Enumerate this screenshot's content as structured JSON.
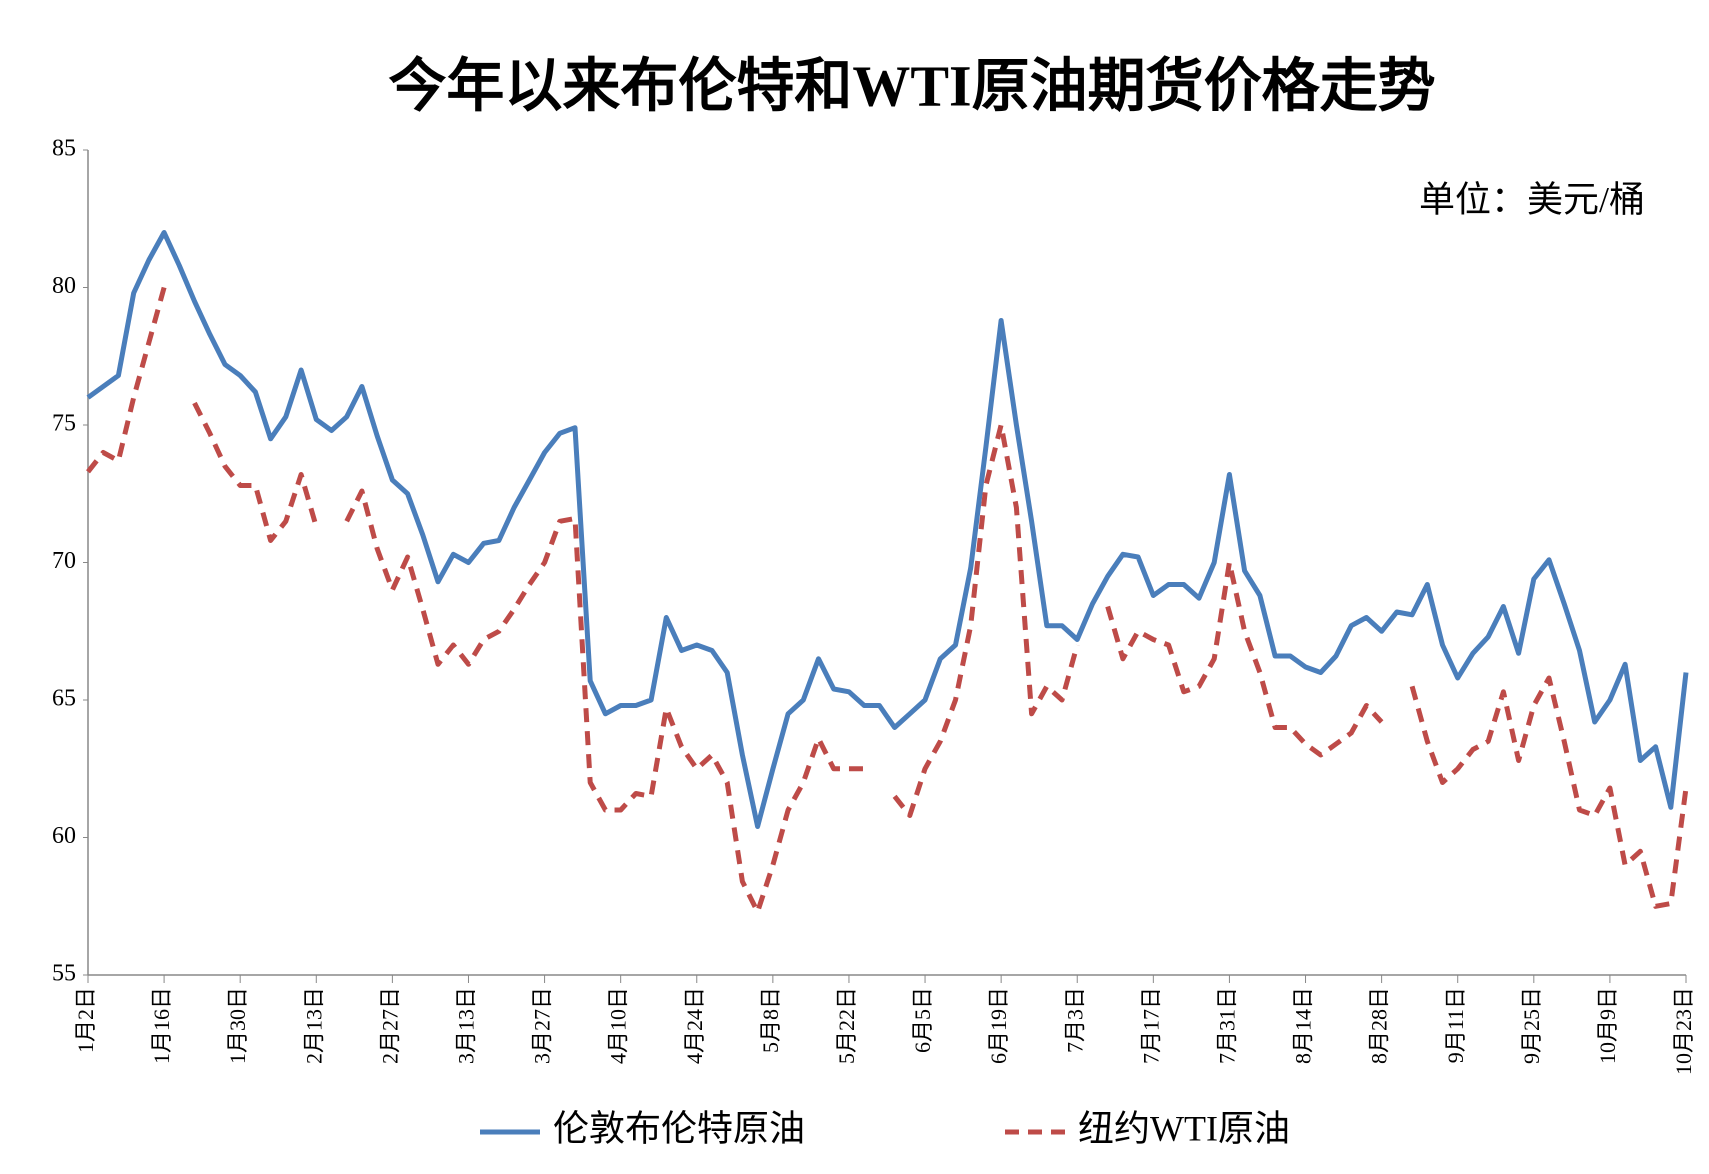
{
  "chart_data": {
    "type": "line",
    "title": "今年以来布伦特和WTI原油期货价格走势",
    "unit_label": "单位：美元/桶",
    "categories": [
      "1月2日",
      null,
      null,
      null,
      null,
      "1月16日",
      null,
      null,
      null,
      null,
      "1月30日",
      null,
      null,
      null,
      null,
      "2月13日",
      null,
      null,
      null,
      null,
      "2月27日",
      null,
      null,
      null,
      null,
      "3月13日",
      null,
      null,
      null,
      null,
      "3月27日",
      null,
      null,
      null,
      null,
      "4月10日",
      null,
      null,
      null,
      null,
      "4月24日",
      null,
      null,
      null,
      null,
      "5月8日",
      null,
      null,
      null,
      null,
      "5月22日",
      null,
      null,
      null,
      null,
      "6月5日",
      null,
      null,
      null,
      null,
      "6月19日",
      null,
      null,
      null,
      null,
      "7月3日",
      null,
      null,
      null,
      null,
      "7月17日",
      null,
      null,
      null,
      null,
      "7月31日",
      null,
      null,
      null,
      null,
      "8月14日",
      null,
      null,
      null,
      null,
      "8月28日",
      null,
      null,
      null,
      null,
      "9月11日",
      null,
      null,
      null,
      null,
      "9月25日",
      null,
      null,
      null,
      null,
      "10月9日",
      null,
      null,
      null,
      null,
      "10月23日"
    ],
    "series": [
      {
        "name": "伦敦布伦特原油",
        "color": "#4a7ebb",
        "dashed": false,
        "values": [
          76.0,
          76.4,
          76.8,
          79.8,
          81.0,
          82.0,
          80.8,
          79.5,
          78.3,
          77.2,
          76.8,
          76.2,
          74.5,
          75.3,
          77.0,
          75.2,
          74.8,
          75.3,
          76.4,
          74.6,
          73.0,
          72.5,
          71.0,
          69.3,
          70.3,
          70.0,
          70.7,
          70.8,
          72.0,
          73.0,
          74.0,
          74.7,
          74.9,
          65.7,
          64.5,
          64.8,
          64.8,
          65.0,
          68.0,
          66.8,
          67.0,
          66.8,
          66.0,
          63.0,
          60.4,
          62.5,
          64.5,
          65.0,
          66.5,
          65.4,
          65.3,
          64.8,
          64.8,
          64.0,
          64.5,
          65.0,
          66.5,
          67.0,
          69.8,
          74.2,
          78.8,
          75.0,
          71.5,
          67.7,
          67.7,
          67.2,
          68.5,
          69.5,
          70.3,
          70.2,
          68.8,
          69.2,
          69.2,
          68.7,
          70.0,
          73.2,
          69.7,
          68.8,
          66.6,
          66.6,
          66.2,
          66.0,
          66.6,
          67.7,
          68.0,
          67.5,
          68.2,
          68.1,
          69.2,
          67.0,
          65.8,
          66.7,
          67.3,
          68.4,
          66.7,
          69.4,
          70.1,
          68.5,
          66.8,
          64.2,
          65.0,
          66.3,
          62.8,
          63.3,
          61.1,
          66.0
        ]
      },
      {
        "name": "纽约WTI原油",
        "color": "#be4b48",
        "dashed": true,
        "values": [
          73.3,
          74.0,
          73.7,
          76.0,
          78.0,
          80.0,
          null,
          75.8,
          74.7,
          73.5,
          72.8,
          72.8,
          70.8,
          71.5,
          73.2,
          71.3,
          null,
          71.5,
          72.6,
          70.5,
          69.0,
          70.2,
          68.3,
          66.3,
          67.0,
          66.3,
          67.2,
          67.5,
          68.3,
          69.2,
          70.0,
          71.5,
          71.6,
          62.0,
          61.0,
          61.0,
          61.6,
          61.5,
          64.7,
          63.3,
          62.5,
          63.0,
          62.0,
          58.4,
          57.3,
          59.0,
          61.0,
          62.0,
          63.6,
          62.5,
          62.5,
          62.5,
          null,
          61.5,
          60.8,
          62.5,
          63.5,
          65.0,
          67.7,
          72.8,
          75.0,
          72.0,
          64.5,
          65.5,
          65.0,
          67.0,
          null,
          68.4,
          66.5,
          67.5,
          67.2,
          67.0,
          65.3,
          65.5,
          66.5,
          70.0,
          67.5,
          66.0,
          64.0,
          64.0,
          63.4,
          63.0,
          63.4,
          63.8,
          64.8,
          64.2,
          null,
          65.5,
          63.5,
          62.0,
          62.5,
          63.2,
          63.5,
          65.3,
          62.8,
          64.8,
          65.8,
          63.5,
          61.0,
          60.8,
          61.8,
          59.0,
          59.5,
          57.5,
          57.6,
          61.8
        ]
      }
    ],
    "ylim": [
      55,
      85
    ],
    "yticks": [
      55,
      60,
      65,
      70,
      75,
      80,
      85
    ],
    "grid": false
  }
}
